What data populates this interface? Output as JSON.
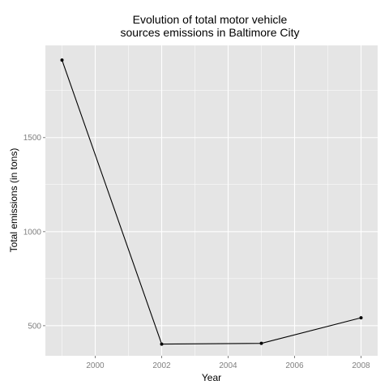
{
  "chart_data": {
    "type": "line",
    "title_lines": [
      "Evolution of total motor vehicle",
      "sources emissions in Baltimore City"
    ],
    "xlabel": "Year",
    "ylabel": "Total emissions (in tons)",
    "x": [
      1999,
      2002,
      2005,
      2008
    ],
    "y": [
      1912,
      402,
      406,
      542
    ],
    "xlim": [
      1998.5,
      2008.5
    ],
    "ylim": [
      340,
      1990
    ],
    "xticks": [
      2000,
      2002,
      2004,
      2006,
      2008
    ],
    "xticks_minor": [
      1999,
      2001,
      2003,
      2005,
      2007
    ],
    "yticks": [
      500,
      1000,
      1500
    ],
    "yticks_minor": [
      750,
      1250,
      1750
    ],
    "grid": true,
    "colors": {
      "panel": "#e5e5e5",
      "grid": "#ffffff",
      "line": "#000000",
      "point": "#000000"
    }
  }
}
